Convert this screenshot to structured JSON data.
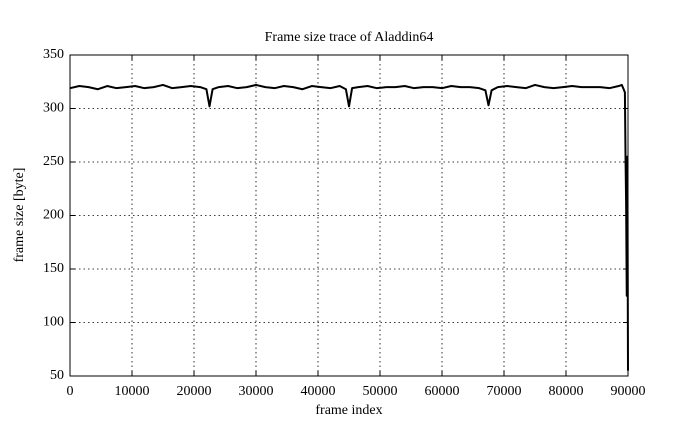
{
  "chart_data": {
    "type": "line",
    "title": "Frame size trace of Aladdin64",
    "x_label": "frame index",
    "y_label": "frame size [byte]",
    "x": [
      0,
      1500,
      3000,
      4500,
      6000,
      7500,
      9000,
      10500,
      12000,
      13500,
      15000,
      16500,
      18000,
      19500,
      21000,
      22000,
      22500,
      23000,
      24000,
      25500,
      27000,
      28500,
      30000,
      31500,
      33000,
      34500,
      36000,
      37500,
      39000,
      40500,
      42000,
      43500,
      44500,
      45000,
      45500,
      46500,
      48000,
      49500,
      51000,
      52500,
      54000,
      55500,
      57000,
      58500,
      60000,
      61500,
      63000,
      64500,
      66000,
      67000,
      67500,
      68000,
      69000,
      70500,
      72000,
      73500,
      75000,
      76500,
      78000,
      79500,
      81000,
      82500,
      84000,
      85500,
      87000,
      88500,
      89000,
      89300,
      89500,
      89600,
      89700,
      89800,
      89900,
      90000
    ],
    "series": [
      {
        "color": "#000000",
        "values": [
          319,
          321,
          320,
          318,
          321,
          319,
          320,
          321,
          319,
          320,
          322,
          319,
          320,
          321,
          320,
          318,
          302,
          318,
          320,
          321,
          319,
          320,
          322,
          320,
          319,
          321,
          320,
          318,
          321,
          320,
          319,
          321,
          318,
          302,
          319,
          320,
          321,
          319,
          320,
          320,
          321,
          319,
          320,
          320,
          319,
          321,
          320,
          320,
          319,
          317,
          303,
          317,
          320,
          321,
          320,
          319,
          322,
          320,
          319,
          320,
          321,
          320,
          320,
          320,
          319,
          321,
          322,
          318,
          315,
          255,
          210,
          125,
          255,
          55
        ]
      }
    ],
    "xlim": [
      0,
      90000
    ],
    "xticks": [
      0,
      10000,
      20000,
      30000,
      40000,
      50000,
      60000,
      70000,
      80000,
      90000
    ],
    "ylim": [
      50,
      350
    ],
    "yticks": [
      50,
      100,
      150,
      200,
      250,
      300,
      350
    ],
    "grid": true
  }
}
